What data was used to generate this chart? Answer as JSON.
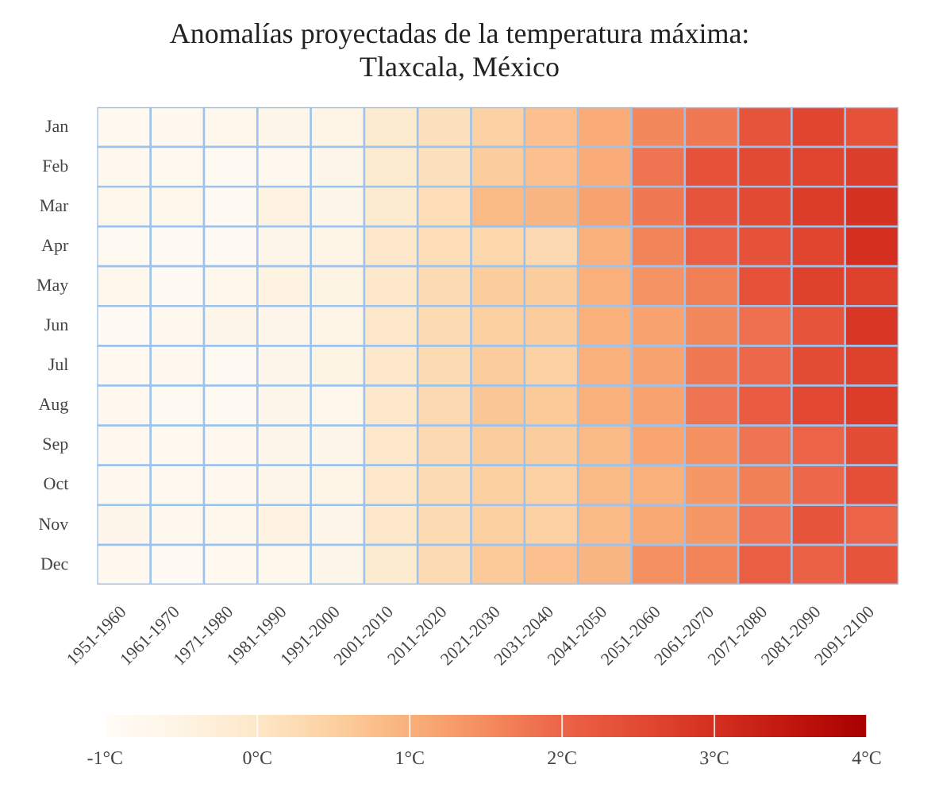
{
  "chart_data": {
    "type": "heatmap",
    "title": "Anomalías proyectadas de la temperatura máxima:\nTlaxcala, México",
    "categories": [
      "1951-1960",
      "1961-1970",
      "1971-1980",
      "1981-1990",
      "1991-2000",
      "2001-2010",
      "2011-2020",
      "2021-2030",
      "2031-2040",
      "2041-2050",
      "2051-2060",
      "2061-2070",
      "2071-2080",
      "2081-2090",
      "2091-2100"
    ],
    "y_categories": [
      "Jan",
      "Feb",
      "Mar",
      "Apr",
      "May",
      "Jun",
      "Jul",
      "Aug",
      "Sep",
      "Oct",
      "Nov",
      "Dec"
    ],
    "cells": [
      [
        -0.8,
        -0.75,
        -0.7,
        -0.6,
        -0.55,
        -0.15,
        0.15,
        0.45,
        0.75,
        1.05,
        1.55,
        1.75,
        2.3,
        2.6,
        2.35
      ],
      [
        -0.75,
        -0.8,
        -0.85,
        -0.75,
        -0.6,
        -0.15,
        0.15,
        0.55,
        0.75,
        1.05,
        1.8,
        2.35,
        2.5,
        2.6,
        2.7
      ],
      [
        -0.7,
        -0.7,
        -0.9,
        -0.45,
        -0.6,
        -0.15,
        0.2,
        0.85,
        0.9,
        1.2,
        1.75,
        2.3,
        2.5,
        2.75,
        2.95
      ],
      [
        -0.85,
        -0.9,
        -0.9,
        -0.6,
        -0.55,
        -0.05,
        0.2,
        0.35,
        0.3,
        1.0,
        1.6,
        2.1,
        2.35,
        2.6,
        3.0
      ],
      [
        -0.7,
        -0.9,
        -0.7,
        -0.45,
        -0.5,
        -0.05,
        0.25,
        0.55,
        0.55,
        1.0,
        1.4,
        1.65,
        2.35,
        2.65,
        2.65
      ],
      [
        -0.9,
        -0.75,
        -0.6,
        -0.65,
        -0.55,
        -0.05,
        0.25,
        0.5,
        0.55,
        1.0,
        1.2,
        1.55,
        1.85,
        2.3,
        2.85
      ],
      [
        -0.8,
        -0.75,
        -0.85,
        -0.65,
        -0.5,
        -0.05,
        0.25,
        0.55,
        0.45,
        1.0,
        1.2,
        1.75,
        1.95,
        2.45,
        2.65
      ],
      [
        -0.75,
        -0.85,
        -0.85,
        -0.65,
        -0.7,
        -0.05,
        0.3,
        0.65,
        0.6,
        1.0,
        1.2,
        1.8,
        2.15,
        2.55,
        2.75
      ],
      [
        -0.75,
        -0.8,
        -0.75,
        -0.65,
        -0.6,
        -0.05,
        0.3,
        0.55,
        0.55,
        0.85,
        1.15,
        1.45,
        1.8,
        2.0,
        2.45
      ],
      [
        -0.75,
        -0.8,
        -0.75,
        -0.6,
        -0.55,
        -0.05,
        0.25,
        0.5,
        0.45,
        0.85,
        1.0,
        1.35,
        1.65,
        1.95,
        2.4
      ],
      [
        -0.65,
        -0.75,
        -0.7,
        -0.45,
        -0.6,
        -0.05,
        0.25,
        0.5,
        0.45,
        0.85,
        1.1,
        1.35,
        1.8,
        2.3,
        2.0
      ],
      [
        -0.75,
        -0.9,
        -0.8,
        -0.7,
        -0.6,
        -0.15,
        0.25,
        0.6,
        0.75,
        0.9,
        1.45,
        1.6,
        2.1,
        2.05,
        2.3
      ]
    ],
    "clim": [
      -1,
      4
    ],
    "cticks": [
      {
        "value": -1,
        "label": "-1°C"
      },
      {
        "value": 0,
        "label": "0°C"
      },
      {
        "value": 1,
        "label": "1°C"
      },
      {
        "value": 2,
        "label": "2°C"
      },
      {
        "value": 3,
        "label": "3°C"
      },
      {
        "value": 4,
        "label": "4°C"
      }
    ]
  }
}
